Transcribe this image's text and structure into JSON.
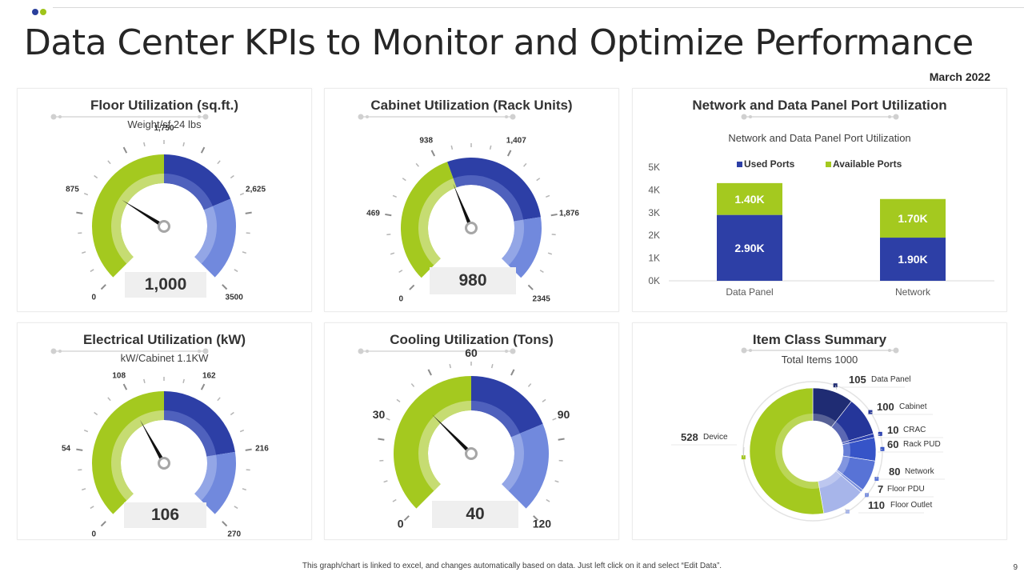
{
  "header": {
    "title": "Data Center KPIs to Monitor and Optimize Performance",
    "date": "March 2022",
    "dot_colors": [
      "#2a3f9c",
      "#9fc41a"
    ]
  },
  "colors": {
    "green": "#a4c91f",
    "green_light": "#c6dc72",
    "blue": "#2d3fa6",
    "blue_light": "#7189dd",
    "grey_box": "#efefef"
  },
  "gauges": [
    {
      "title": "Floor Utilization (sq.ft.)",
      "subtitle": "Weight/sf  24 lbs",
      "value_label": "1,000",
      "value": 1000,
      "min": 0,
      "max": 3500,
      "green_to": 1750,
      "blue_to": 2625,
      "tick_labels": [
        "0",
        "875",
        "1,750",
        "2,625",
        "3500"
      ],
      "tick_values": [
        0,
        875,
        1750,
        2625,
        3500
      ]
    },
    {
      "title": "Cabinet Utilization (Rack Units)",
      "subtitle": "",
      "value_label": "980",
      "value": 980,
      "min": 0,
      "max": 2345,
      "green_to": 1000,
      "blue_to": 1876,
      "tick_labels": [
        "0",
        "469",
        "938",
        "1,407",
        "1,876",
        "2345"
      ],
      "tick_values": [
        0,
        469,
        938,
        1407,
        1876,
        2345
      ]
    },
    {
      "title": "Electrical Utilization (kW)",
      "subtitle": "kW/Cabinet  1.1KW",
      "value_label": "106",
      "value": 106,
      "min": 0,
      "max": 270,
      "green_to": 135,
      "blue_to": 216,
      "tick_labels": [
        "0",
        "54",
        "108",
        "162",
        "216",
        "270"
      ],
      "tick_values": [
        0,
        54,
        108,
        162,
        216,
        270
      ]
    },
    {
      "title": "Cooling Utilization (Tons)",
      "subtitle": "",
      "value_label": "40",
      "value": 40,
      "min": 0,
      "max": 120,
      "green_to": 60,
      "blue_to": 90,
      "tick_labels": [
        "0",
        "30",
        "60",
        "90",
        "120"
      ],
      "tick_values": [
        0,
        30,
        60,
        90,
        120
      ]
    }
  ],
  "network_panel": {
    "title": "Network and Data Panel Port Utilization",
    "chart_data": {
      "type": "bar",
      "title": "Network and Data Panel Port Utilization",
      "categories": [
        "Data Panel",
        "Network"
      ],
      "series": [
        {
          "name": "Used Ports",
          "values": [
            2.9,
            1.9
          ],
          "labels": [
            "2.90K",
            "1.90K"
          ],
          "color": "#2d3fa6"
        },
        {
          "name": "Available Ports",
          "values": [
            1.4,
            1.7
          ],
          "labels": [
            "1.40K",
            "1.70K"
          ],
          "color": "#a4c91f"
        }
      ],
      "ylim": [
        0,
        5
      ],
      "yticks": [
        "0K",
        "1K",
        "2K",
        "3K",
        "4K",
        "5K"
      ],
      "stacked": true
    }
  },
  "item_panel": {
    "title": "Item Class Summary",
    "subtitle": "Total Items 1000",
    "chart_data": {
      "type": "pie",
      "title": "Item Class Summary",
      "total": 1000,
      "slices": [
        {
          "name": "Data Panel",
          "value": 105,
          "color": "#1f2c73"
        },
        {
          "name": "Cabinet",
          "value": 100,
          "color": "#25369a"
        },
        {
          "name": "CRAC",
          "value": 10,
          "color": "#2b40b0"
        },
        {
          "name": "Rack PUD",
          "value": 60,
          "color": "#3654c8"
        },
        {
          "name": "Network",
          "value": 80,
          "color": "#5873d6"
        },
        {
          "name": "Floor PDU",
          "value": 7,
          "color": "#7b90de"
        },
        {
          "name": "Floor Outlet",
          "value": 110,
          "color": "#a7b5ea"
        },
        {
          "name": "Device",
          "value": 528,
          "color": "#a4c91f"
        }
      ]
    }
  },
  "footer": {
    "note": "This graph/chart is linked to excel, and changes automatically based on data. Just left click on it and select “Edit Data”.",
    "page_number": "9"
  }
}
